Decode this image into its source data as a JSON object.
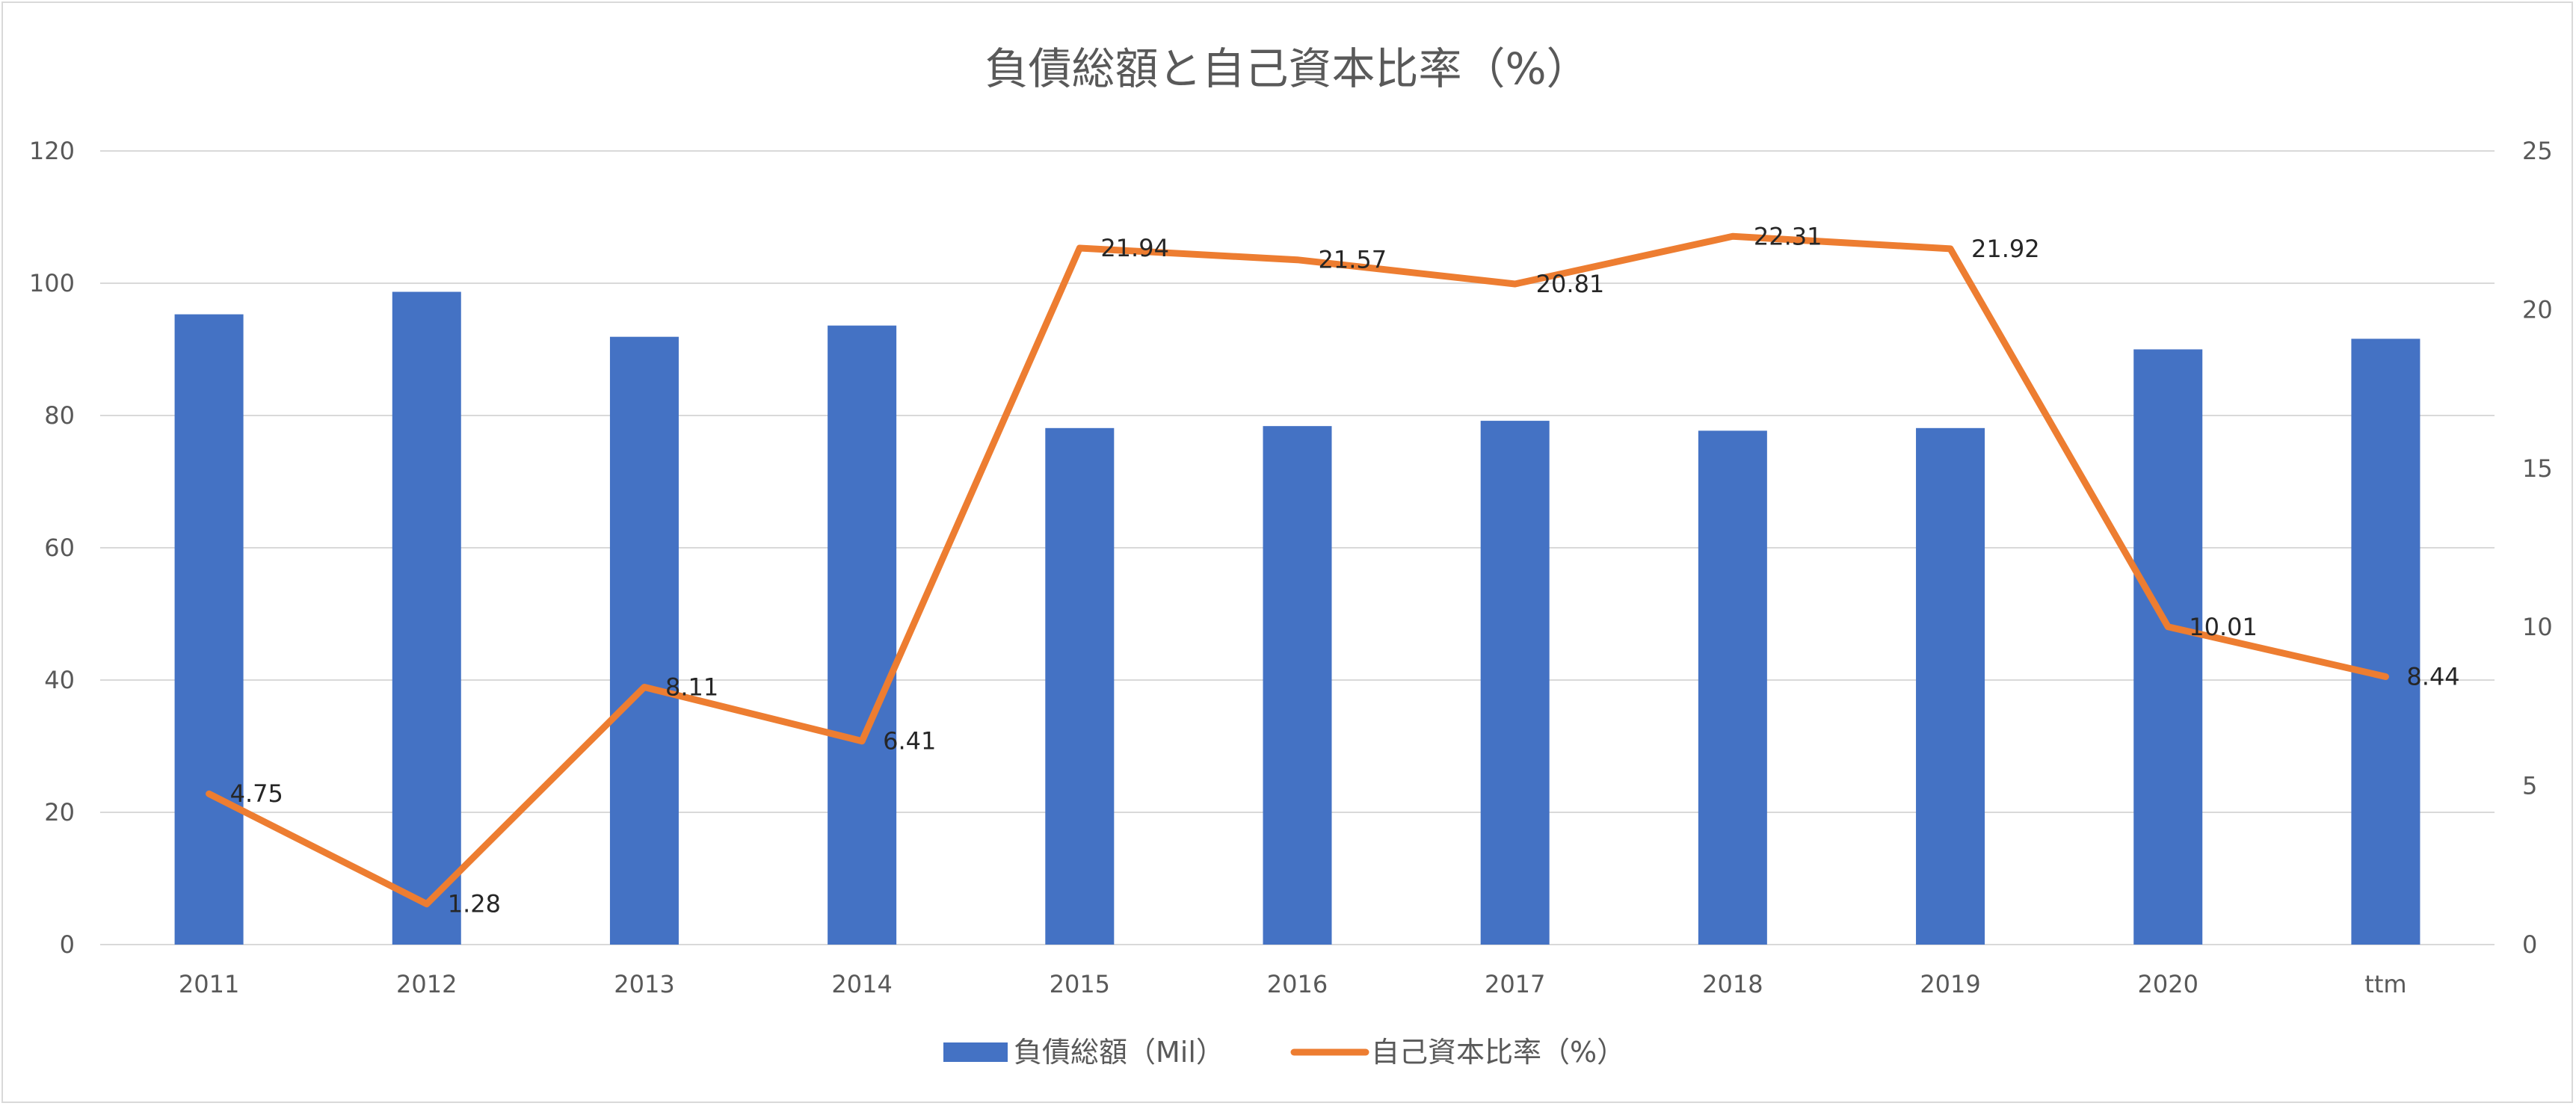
{
  "chart_data": {
    "type": "bar",
    "title": "負債総額と自己資本比率（%）",
    "categories": [
      "2011",
      "2012",
      "2013",
      "2014",
      "2015",
      "2016",
      "2017",
      "2018",
      "2019",
      "2020",
      "ttm"
    ],
    "series": [
      {
        "name": "負債総額（Mil）",
        "type": "bar",
        "axis": "left",
        "color": "#4472C4",
        "values": [
          95.3,
          98.7,
          91.9,
          93.6,
          78.1,
          78.4,
          79.2,
          77.7,
          78.1,
          90.0,
          91.6
        ]
      },
      {
        "name": "自己資本比率（%）",
        "type": "line",
        "axis": "right",
        "color": "#ED7D31",
        "values": [
          4.75,
          1.28,
          8.11,
          6.41,
          21.94,
          21.57,
          20.81,
          22.31,
          21.92,
          10.01,
          8.44
        ],
        "labels": [
          "4.75",
          "1.28",
          "8.11",
          "6.41",
          "21.94",
          "21.57",
          "20.81",
          "22.31",
          "21.92",
          "10.01",
          "8.44"
        ]
      }
    ],
    "y_left": {
      "min": 0,
      "max": 120,
      "ticks": [
        "0",
        "20",
        "40",
        "60",
        "80",
        "100",
        "120"
      ]
    },
    "y_right": {
      "min": 0,
      "max": 25,
      "ticks": [
        "0",
        "5",
        "10",
        "15",
        "20",
        "25"
      ]
    },
    "grid": true,
    "legend_position": "bottom",
    "colors": {
      "gridline": "#D9D9D9",
      "axis_text": "#595959",
      "data_label": "#262626"
    }
  }
}
